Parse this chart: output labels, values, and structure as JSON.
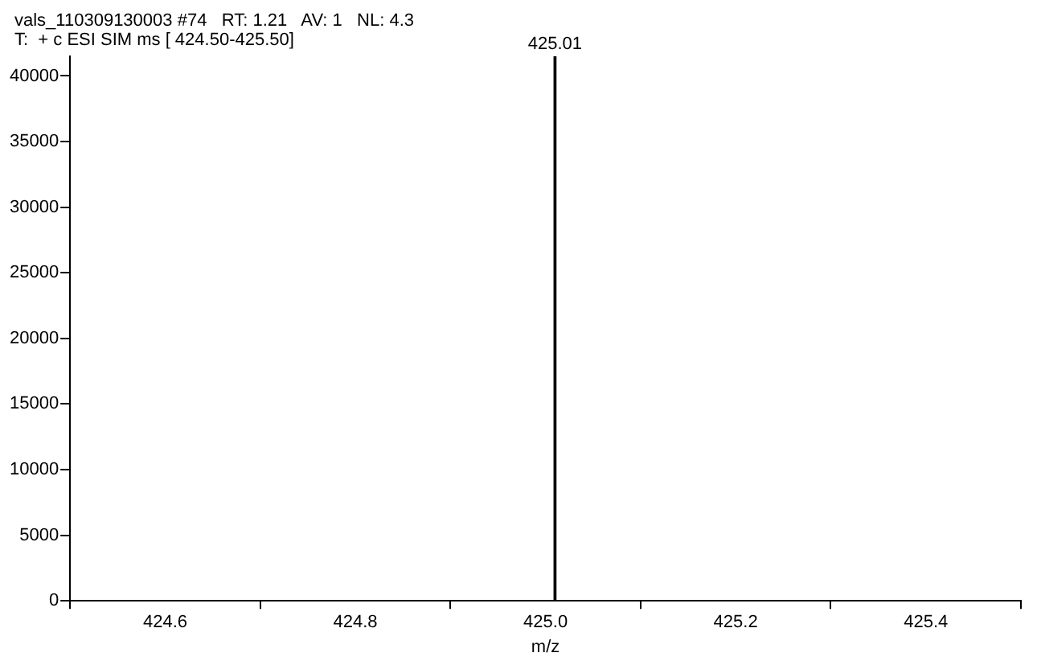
{
  "chart_data": {
    "type": "bar",
    "title": "vals_110309130003 #74   RT: 1.21   AV: 1   NL: 4.3",
    "subtitle": "T:  + c ESI SIM ms [ 424.50-425.50]",
    "xlabel": "m/z",
    "x": [
      425.01
    ],
    "values": [
      41500
    ],
    "color": "#000000",
    "annotations": [
      {
        "text": "425.01",
        "x": 425.01,
        "y": 41500
      }
    ],
    "xlim": [
      424.5,
      425.5
    ],
    "xticks": [
      424.6,
      424.8,
      {
        "value": 425.0,
        "label": "425.0"
      },
      425.2,
      425.4
    ],
    "ylim": [
      0,
      41500
    ],
    "yticks": [
      0,
      5000,
      10000,
      15000,
      20000,
      25000,
      30000,
      35000,
      40000
    ],
    "grid": false,
    "legend": false
  }
}
